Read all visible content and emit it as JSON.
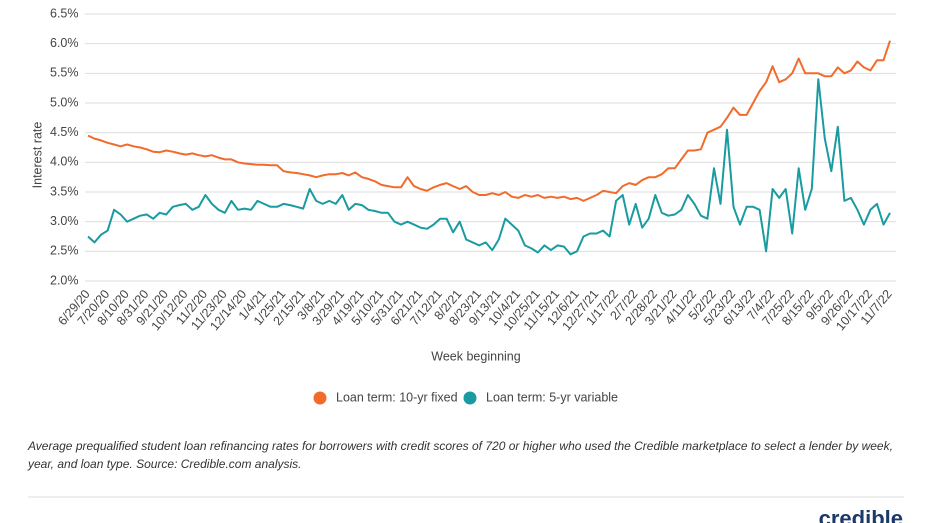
{
  "chart_data": {
    "type": "line",
    "y_label": "Interest rate",
    "x_label": "Week beginning",
    "caption": "Average prequalified student loan refinancing rates for borrowers with credit scores of 720 or higher who used the Credible marketplace to select a lender by week, year, and loan type. Source: Credible.com analysis.",
    "logo": "credible",
    "grid": true,
    "ylim": [
      2.0,
      6.5
    ],
    "yticks": [
      {
        "value": 2.0,
        "label": "2.0%"
      },
      {
        "value": 2.5,
        "label": "2.5%"
      },
      {
        "value": 3.0,
        "label": "3.0%"
      },
      {
        "value": 3.5,
        "label": "3.5%"
      },
      {
        "value": 4.0,
        "label": "4.0%"
      },
      {
        "value": 4.5,
        "label": "4.5%"
      },
      {
        "value": 5.0,
        "label": "5.0%"
      },
      {
        "value": 5.5,
        "label": "5.5%"
      },
      {
        "value": 6.0,
        "label": "6.0%"
      },
      {
        "value": 6.5,
        "label": "6.5%"
      }
    ],
    "categories": [
      "6/29/20",
      null,
      null,
      "7/20/20",
      null,
      null,
      "8/10/20",
      null,
      null,
      "8/31/20",
      null,
      null,
      "9/21/20",
      null,
      null,
      "10/12/20",
      null,
      null,
      "11/2/20",
      null,
      null,
      "11/23/20",
      null,
      null,
      "12/14/20",
      null,
      null,
      "1/4/21",
      null,
      null,
      "1/25/21",
      null,
      null,
      "2/15/21",
      null,
      null,
      "3/8/21",
      null,
      null,
      "3/29/21",
      null,
      null,
      "4/19/21",
      null,
      null,
      "5/10/21",
      null,
      null,
      "5/31/21",
      null,
      null,
      "6/21/21",
      null,
      null,
      "7/12/21",
      null,
      null,
      "8/2/21",
      null,
      null,
      "8/23/21",
      null,
      null,
      "9/13/21",
      null,
      null,
      "10/4/21",
      null,
      null,
      "10/25/21",
      null,
      null,
      "11/15/21",
      null,
      null,
      "12/6/21",
      null,
      null,
      "12/27/21",
      null,
      null,
      "1/17/22",
      null,
      null,
      "2/7/22",
      null,
      null,
      "2/28/22",
      null,
      null,
      "3/21/22",
      null,
      null,
      "4/11/22",
      null,
      null,
      "5/2/22",
      null,
      null,
      "5/23/22",
      null,
      null,
      "6/13/22",
      null,
      null,
      "7/4/22",
      null,
      null,
      "7/25/22",
      null,
      null,
      "8/15/22",
      null,
      null,
      "9/5/22",
      null,
      null,
      "9/26/22",
      null,
      null,
      "10/17/22",
      null,
      null,
      "11/7/22"
    ],
    "series": [
      {
        "name": "Loan term: 10-yr fixed",
        "color": "#f26b2a",
        "values": [
          4.45,
          4.4,
          4.37,
          4.33,
          4.3,
          4.27,
          4.3,
          4.27,
          4.25,
          4.22,
          4.18,
          4.17,
          4.2,
          4.18,
          4.15,
          4.13,
          4.15,
          4.12,
          4.1,
          4.12,
          4.08,
          4.05,
          4.05,
          4.0,
          3.98,
          3.97,
          3.96,
          3.96,
          3.95,
          3.95,
          3.85,
          3.83,
          3.82,
          3.8,
          3.78,
          3.75,
          3.78,
          3.8,
          3.8,
          3.82,
          3.78,
          3.83,
          3.75,
          3.72,
          3.68,
          3.62,
          3.6,
          3.58,
          3.58,
          3.75,
          3.6,
          3.55,
          3.52,
          3.58,
          3.62,
          3.65,
          3.6,
          3.55,
          3.6,
          3.5,
          3.45,
          3.45,
          3.48,
          3.45,
          3.5,
          3.42,
          3.4,
          3.45,
          3.42,
          3.45,
          3.4,
          3.42,
          3.4,
          3.42,
          3.38,
          3.4,
          3.35,
          3.4,
          3.45,
          3.52,
          3.5,
          3.48,
          3.6,
          3.65,
          3.62,
          3.7,
          3.75,
          3.75,
          3.8,
          3.9,
          3.9,
          4.05,
          4.2,
          4.2,
          4.22,
          4.5,
          4.55,
          4.6,
          4.75,
          4.92,
          4.8,
          4.8,
          5.0,
          5.2,
          5.35,
          5.62,
          5.35,
          5.4,
          5.5,
          5.75,
          5.5,
          5.5,
          5.5,
          5.45,
          5.45,
          5.6,
          5.5,
          5.55,
          5.7,
          5.6,
          5.55,
          5.72,
          5.72,
          6.05
        ]
      },
      {
        "name": "Loan term: 5-yr variable",
        "color": "#1a9ba1",
        "values": [
          2.75,
          2.65,
          2.78,
          2.85,
          3.2,
          3.12,
          3.0,
          3.05,
          3.1,
          3.12,
          3.05,
          3.15,
          3.12,
          3.25,
          3.28,
          3.3,
          3.2,
          3.25,
          3.45,
          3.3,
          3.2,
          3.15,
          3.35,
          3.2,
          3.22,
          3.2,
          3.35,
          3.3,
          3.25,
          3.25,
          3.3,
          3.28,
          3.25,
          3.22,
          3.55,
          3.35,
          3.3,
          3.35,
          3.3,
          3.45,
          3.2,
          3.3,
          3.28,
          3.2,
          3.18,
          3.15,
          3.15,
          3.0,
          2.95,
          3.0,
          2.95,
          2.9,
          2.88,
          2.95,
          3.05,
          3.05,
          2.82,
          3.0,
          2.7,
          2.65,
          2.6,
          2.65,
          2.52,
          2.7,
          3.05,
          2.95,
          2.85,
          2.6,
          2.55,
          2.48,
          2.6,
          2.52,
          2.6,
          2.58,
          2.45,
          2.5,
          2.75,
          2.8,
          2.8,
          2.85,
          2.75,
          3.35,
          3.45,
          2.95,
          3.3,
          2.9,
          3.05,
          3.45,
          3.15,
          3.1,
          3.12,
          3.2,
          3.45,
          3.3,
          3.1,
          3.05,
          3.9,
          3.3,
          4.55,
          3.25,
          2.95,
          3.25,
          3.25,
          3.2,
          2.5,
          3.55,
          3.4,
          3.55,
          2.8,
          3.9,
          3.2,
          3.55,
          5.4,
          4.4,
          3.85,
          4.6,
          3.35,
          3.4,
          3.2,
          2.95,
          3.2,
          3.3,
          2.95,
          3.15
        ]
      }
    ]
  }
}
